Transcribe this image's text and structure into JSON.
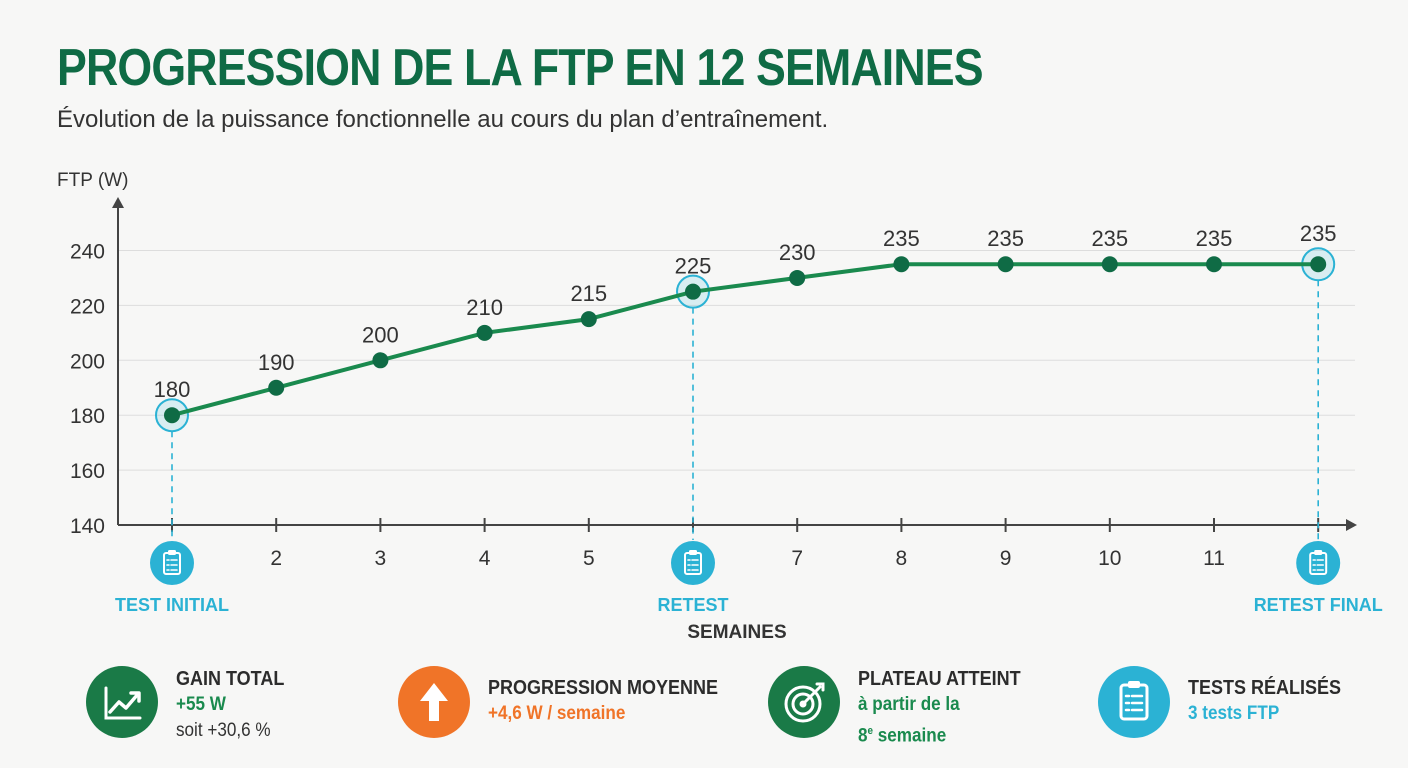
{
  "header": {
    "title": "PROGRESSION DE LA FTP EN 12 SEMAINES",
    "subtitle": "Évolution de la puissance fonctionnelle au cours du plan d’entraînement."
  },
  "chart_data": {
    "type": "line",
    "ylabel": "FTP (W)",
    "xlabel": "SEMAINES",
    "x": [
      1,
      2,
      3,
      4,
      5,
      6,
      7,
      8,
      9,
      10,
      11,
      12
    ],
    "series": [
      {
        "values": [
          180,
          190,
          200,
          210,
          215,
          225,
          230,
          235,
          235,
          235,
          235,
          235
        ]
      }
    ],
    "ylim": [
      140,
      240
    ],
    "yticks": [
      140,
      160,
      180,
      200,
      220,
      240
    ],
    "xtick_labels": [
      "",
      "2",
      "3",
      "4",
      "5",
      "",
      "7",
      "8",
      "9",
      "10",
      "11",
      ""
    ],
    "data_labels": [
      "180",
      "190",
      "200",
      "210",
      "215",
      "225",
      "230",
      "235",
      "235",
      "235",
      "235",
      "235"
    ],
    "grid": true,
    "test_markers": [
      {
        "week": 1,
        "label": "TEST INITIAL",
        "icon": "clipboard-icon"
      },
      {
        "week": 6,
        "label": "RETEST",
        "icon": "clipboard-icon"
      },
      {
        "week": 12,
        "label": "RETEST FINAL",
        "icon": "clipboard-icon"
      }
    ],
    "colors": {
      "line": "#1a8a4e",
      "point": "#0f6b45",
      "test": "#2bb2d4"
    }
  },
  "stats": [
    {
      "icon": "trend-up-icon",
      "color": "#1a7a47",
      "title": "GAIN TOTAL",
      "line1": "+55 W",
      "line1_color": "#1a8a4e",
      "line2": "soit +30,6 %"
    },
    {
      "icon": "arrow-up-icon",
      "color": "#f07428",
      "title": "PROGRESSION MOYENNE",
      "line1": "+4,6 W / semaine",
      "line1_color": "#f07428"
    },
    {
      "icon": "target-icon",
      "color": "#1a7a47",
      "title": "PLATEAU ATTEINT",
      "line1": "à partir de la",
      "line1_color": "#1a8a4e",
      "line2_main": "8",
      "line2_sup": "e",
      "line2_rest": " semaine"
    },
    {
      "icon": "clipboard-icon",
      "color": "#2bb2d4",
      "title": "TESTS RÉALISÉS",
      "line1": "3 tests FTP",
      "line1_color": "#2bb2d4"
    }
  ]
}
